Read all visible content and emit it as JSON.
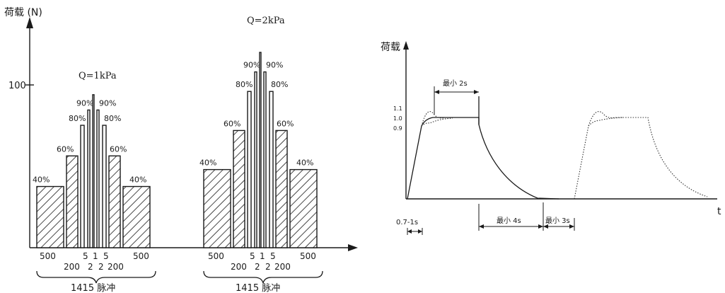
{
  "left": {
    "ylabel": "荷载 (N)",
    "ytick": "100",
    "groups": [
      {
        "q_label": "Q=1kPa",
        "bars": [
          {
            "pct": "40%",
            "level": 0.4
          },
          {
            "pct": "60%",
            "level": 0.6
          },
          {
            "pct": "80%",
            "level": 0.8
          },
          {
            "pct": "90%",
            "level": 0.9
          },
          {
            "pct": "",
            "level": 1.0
          },
          {
            "pct": "90%",
            "level": 0.9
          },
          {
            "pct": "80%",
            "level": 0.8
          },
          {
            "pct": "60%",
            "level": 0.6
          },
          {
            "pct": "40%",
            "level": 0.4
          }
        ],
        "counts_top": [
          "500",
          "5",
          "1",
          "5",
          "500"
        ],
        "counts_bottom": [
          "200",
          "2",
          "2",
          "200"
        ],
        "caption": "1415 脉冲"
      },
      {
        "q_label": "Q=2kPa",
        "bars": [
          {
            "pct": "40%",
            "level": 0.4
          },
          {
            "pct": "60%",
            "level": 0.6
          },
          {
            "pct": "80%",
            "level": 0.8
          },
          {
            "pct": "90%",
            "level": 0.9
          },
          {
            "pct": "",
            "level": 1.0
          },
          {
            "pct": "90%",
            "level": 0.9
          },
          {
            "pct": "80%",
            "level": 0.8
          },
          {
            "pct": "60%",
            "level": 0.6
          },
          {
            "pct": "40%",
            "level": 0.4
          }
        ],
        "counts_top": [
          "500",
          "5",
          "1",
          "5",
          "500"
        ],
        "counts_bottom": [
          "200",
          "2",
          "2",
          "200"
        ],
        "caption": "1415 脉冲"
      }
    ]
  },
  "right": {
    "ylabel": "荷载",
    "xlabel": "t",
    "yticks": [
      "1.1",
      "1.0",
      "0.9"
    ],
    "dim_min2s": "最小 2s",
    "dim_rise": "0.7-1s",
    "dim_min4s": "最小 4s",
    "dim_min3s": "最小 3s"
  }
}
